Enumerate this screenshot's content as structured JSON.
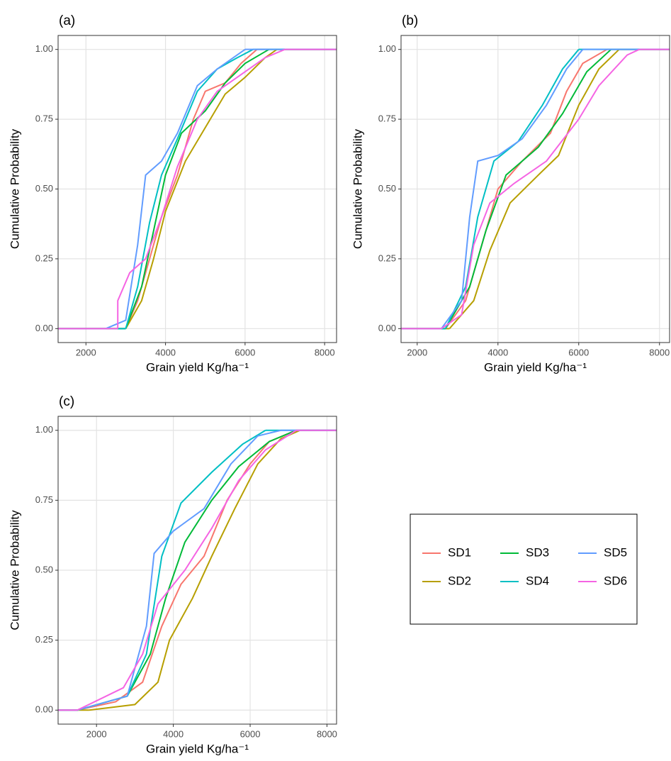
{
  "chart_data": [
    {
      "type": "line",
      "title": "(a)",
      "x_label": "Grain yield Kg/ha⁻¹",
      "y_label": "Cumulative Probability",
      "xlim": [
        1300,
        8300
      ],
      "ylim": [
        -0.05,
        1.05
      ],
      "xticks": [
        2000,
        4000,
        6000,
        8000
      ],
      "yticks": [
        {
          "value": 0,
          "label": "0.00"
        },
        {
          "value": 0.25,
          "label": "0.25"
        },
        {
          "value": 0.5,
          "label": "0.50"
        },
        {
          "value": 0.75,
          "label": "0.75"
        },
        {
          "value": 1,
          "label": "1.00"
        }
      ],
      "grid": true,
      "series": [
        {
          "name": "SD1",
          "color": "#F8766D",
          "x": [
            3000,
            3300,
            3600,
            3900,
            4300,
            4700,
            5000,
            5500,
            5900,
            6300
          ],
          "values": [
            0,
            0.1,
            0.25,
            0.4,
            0.55,
            0.75,
            0.85,
            0.88,
            0.95,
            1
          ]
        },
        {
          "name": "SD2",
          "color": "#B79F00",
          "x": [
            3000,
            3400,
            3700,
            4000,
            4500,
            5000,
            5500,
            6000,
            6500,
            6800
          ],
          "values": [
            0,
            0.1,
            0.25,
            0.42,
            0.6,
            0.72,
            0.84,
            0.9,
            0.97,
            1
          ]
        },
        {
          "name": "SD3",
          "color": "#00BA38",
          "x": [
            3000,
            3400,
            3700,
            4000,
            4400,
            5000,
            5500,
            6000,
            6600
          ],
          "values": [
            0,
            0.15,
            0.35,
            0.55,
            0.7,
            0.78,
            0.88,
            0.95,
            1
          ]
        },
        {
          "name": "SD4",
          "color": "#00BFC4",
          "x": [
            3000,
            3300,
            3600,
            3900,
            4300,
            4800,
            5300,
            5800,
            6200
          ],
          "values": [
            0,
            0.15,
            0.38,
            0.55,
            0.68,
            0.85,
            0.93,
            0.97,
            1
          ]
        },
        {
          "name": "SD5",
          "color": "#619CFF",
          "x": [
            2500,
            3000,
            3300,
            3500,
            3900,
            4300,
            4800,
            5300,
            6000
          ],
          "values": [
            0,
            0.03,
            0.3,
            0.55,
            0.6,
            0.7,
            0.87,
            0.93,
            1
          ]
        },
        {
          "name": "SD6",
          "color": "#F564E3",
          "x": [
            2800,
            2800,
            3100,
            3500,
            3900,
            4300,
            4800,
            5300,
            6000,
            6500,
            7000
          ],
          "values": [
            0,
            0.1,
            0.2,
            0.25,
            0.4,
            0.58,
            0.75,
            0.85,
            0.92,
            0.97,
            1
          ]
        }
      ]
    },
    {
      "type": "line",
      "title": "(b)",
      "x_label": "Grain yield Kg/ha⁻¹",
      "y_label": "Cumulative Probability",
      "xlim": [
        1600,
        8250
      ],
      "ylim": [
        -0.05,
        1.05
      ],
      "xticks": [
        2000,
        4000,
        6000,
        8000
      ],
      "yticks": [
        {
          "value": 0,
          "label": "0.00"
        },
        {
          "value": 0.25,
          "label": "0.25"
        },
        {
          "value": 0.5,
          "label": "0.50"
        },
        {
          "value": 0.75,
          "label": "0.75"
        },
        {
          "value": 1,
          "label": "1.00"
        }
      ],
      "grid": true,
      "series": [
        {
          "name": "SD1",
          "color": "#F8766D",
          "x": [
            2700,
            3200,
            3600,
            4000,
            4600,
            5300,
            5700,
            6100,
            6700
          ],
          "values": [
            0,
            0.1,
            0.3,
            0.5,
            0.6,
            0.7,
            0.85,
            0.95,
            1
          ]
        },
        {
          "name": "SD2",
          "color": "#B79F00",
          "x": [
            2800,
            3400,
            3800,
            4300,
            5000,
            5500,
            6000,
            6500,
            7000
          ],
          "values": [
            0,
            0.1,
            0.28,
            0.45,
            0.55,
            0.62,
            0.8,
            0.93,
            1
          ]
        },
        {
          "name": "SD3",
          "color": "#00BA38",
          "x": [
            2700,
            3300,
            3700,
            4200,
            5000,
            5600,
            6200,
            6800
          ],
          "values": [
            0,
            0.15,
            0.35,
            0.55,
            0.65,
            0.77,
            0.92,
            1
          ]
        },
        {
          "name": "SD4",
          "color": "#00BFC4",
          "x": [
            2700,
            3200,
            3500,
            3900,
            4500,
            5100,
            5600,
            6000
          ],
          "values": [
            0,
            0.15,
            0.4,
            0.6,
            0.67,
            0.8,
            0.93,
            1
          ]
        },
        {
          "name": "SD5",
          "color": "#619CFF",
          "x": [
            2600,
            3100,
            3300,
            3500,
            4000,
            4600,
            5200,
            5700,
            6100
          ],
          "values": [
            0,
            0.1,
            0.4,
            0.6,
            0.62,
            0.68,
            0.8,
            0.93,
            1
          ]
        },
        {
          "name": "SD6",
          "color": "#F564E3",
          "x": [
            2600,
            3100,
            3400,
            3800,
            4400,
            5200,
            6000,
            6500,
            7200,
            7500
          ],
          "values": [
            0,
            0.05,
            0.3,
            0.45,
            0.52,
            0.6,
            0.75,
            0.87,
            0.98,
            1
          ]
        }
      ]
    },
    {
      "type": "line",
      "title": "(c)",
      "x_label": "Grain yield Kg/ha⁻¹",
      "y_label": "Cumulative Probability",
      "xlim": [
        1000,
        8250
      ],
      "ylim": [
        -0.05,
        1.05
      ],
      "xticks": [
        2000,
        4000,
        6000,
        8000
      ],
      "yticks": [
        {
          "value": 0,
          "label": "0.00"
        },
        {
          "value": 0.25,
          "label": "0.25"
        },
        {
          "value": 0.5,
          "label": "0.50"
        },
        {
          "value": 0.75,
          "label": "0.75"
        },
        {
          "value": 1,
          "label": "1.00"
        }
      ],
      "grid": true,
      "series": [
        {
          "name": "SD1",
          "color": "#F8766D",
          "x": [
            1500,
            2500,
            3200,
            3700,
            4200,
            4800,
            5400,
            6000,
            6500,
            7200
          ],
          "values": [
            0,
            0.03,
            0.1,
            0.3,
            0.45,
            0.55,
            0.75,
            0.88,
            0.96,
            1
          ]
        },
        {
          "name": "SD2",
          "color": "#B79F00",
          "x": [
            1800,
            3000,
            3600,
            3900,
            4500,
            5000,
            5600,
            6200,
            6800,
            7300
          ],
          "values": [
            0,
            0.02,
            0.1,
            0.25,
            0.4,
            0.55,
            0.72,
            0.88,
            0.97,
            1
          ]
        },
        {
          "name": "SD3",
          "color": "#00BA38",
          "x": [
            1500,
            2800,
            3400,
            3800,
            4300,
            5000,
            5700,
            6500,
            7200
          ],
          "values": [
            0,
            0.05,
            0.2,
            0.4,
            0.6,
            0.75,
            0.87,
            0.96,
            1
          ]
        },
        {
          "name": "SD4",
          "color": "#00BFC4",
          "x": [
            1500,
            2800,
            3300,
            3700,
            4200,
            5000,
            5800,
            6400
          ],
          "values": [
            0,
            0.05,
            0.2,
            0.55,
            0.74,
            0.85,
            0.95,
            1
          ]
        },
        {
          "name": "SD5",
          "color": "#619CFF",
          "x": [
            1500,
            2800,
            3300,
            3500,
            4000,
            4800,
            5500,
            6200,
            6800
          ],
          "values": [
            0,
            0.05,
            0.3,
            0.56,
            0.64,
            0.72,
            0.88,
            0.98,
            1
          ]
        },
        {
          "name": "SD6",
          "color": "#F564E3",
          "x": [
            1500,
            2700,
            3200,
            3600,
            4300,
            5000,
            5700,
            6400,
            7200
          ],
          "values": [
            0,
            0.08,
            0.2,
            0.38,
            0.5,
            0.65,
            0.82,
            0.93,
            1
          ]
        }
      ]
    }
  ]
}
